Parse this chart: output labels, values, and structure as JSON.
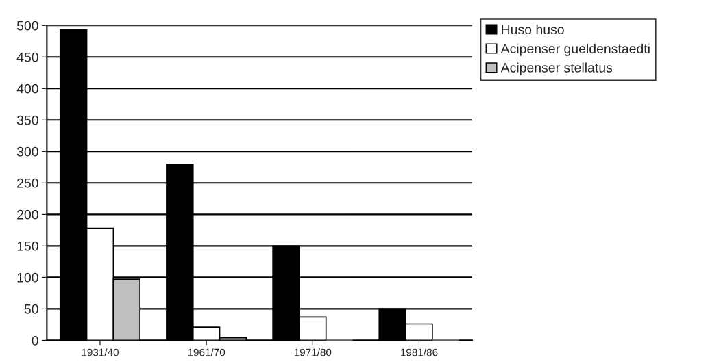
{
  "chart_data": {
    "type": "bar",
    "categories": [
      "1931/40",
      "1961/70",
      "1971/80",
      "1981/86"
    ],
    "series": [
      {
        "name": "Huso huso",
        "color": "#000000",
        "values": [
          493,
          280,
          150,
          50
        ]
      },
      {
        "name": "Acipenser gueldenstaedti",
        "color": "#ffffff",
        "values": [
          178,
          21,
          37,
          26
        ]
      },
      {
        "name": "Acipenser stellatus",
        "color": "#c0c0c0",
        "values": [
          97,
          4,
          0,
          0
        ]
      }
    ],
    "ylim": [
      0,
      500
    ],
    "yticks": [
      0,
      50,
      100,
      150,
      200,
      250,
      300,
      350,
      400,
      450,
      500
    ],
    "grid": "y",
    "legend": "top right"
  }
}
